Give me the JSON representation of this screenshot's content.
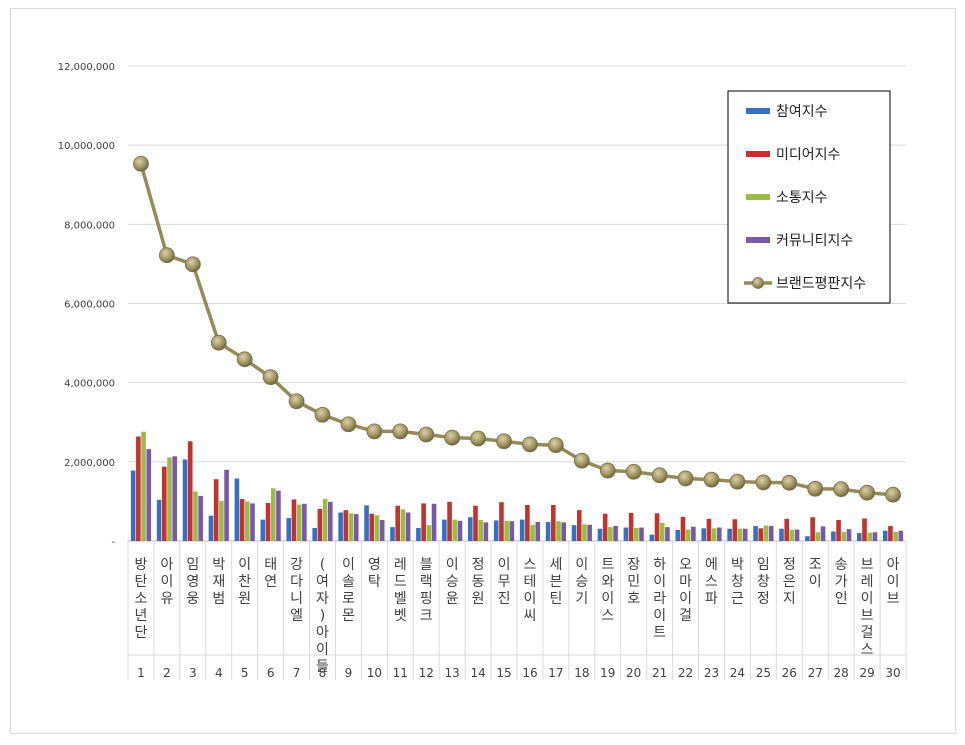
{
  "chart_data": {
    "type": "bar",
    "title": "",
    "xlabel": "",
    "ylabel": "",
    "ylim": [
      0,
      12000000
    ],
    "yticks": [
      "-",
      "2,000,000",
      "4,000,000",
      "6,000,000",
      "8,000,000",
      "10,000,000",
      "12,000,000"
    ],
    "grid": true,
    "legend_position": "top-right",
    "ranks": [
      "1",
      "2",
      "3",
      "4",
      "5",
      "6",
      "7",
      "8",
      "9",
      "10",
      "11",
      "12",
      "13",
      "14",
      "15",
      "16",
      "17",
      "18",
      "19",
      "20",
      "21",
      "22",
      "23",
      "24",
      "25",
      "26",
      "27",
      "28",
      "29",
      "30"
    ],
    "categories": [
      "방탄소년단",
      "아이유",
      "임영웅",
      "박재범",
      "이찬원",
      "태연",
      "강다니엘",
      "(여자)아이들",
      "이솔로몬",
      "영탁",
      "레드벨벳",
      "블랙핑크",
      "이승윤",
      "정동원",
      "이무진",
      "스테이씨",
      "세븐틴",
      "이승기",
      "트와이스",
      "장민호",
      "하이라이트",
      "오마이걸",
      "에스파",
      "박창근",
      "임창정",
      "정은지",
      "조이",
      "송가인",
      "브레이브걸스",
      "아이브"
    ],
    "series": [
      {
        "name": "참여지수",
        "type": "bar",
        "color": "#3a6fc0",
        "values": [
          1780000,
          1040000,
          2060000,
          640000,
          1580000,
          540000,
          580000,
          330000,
          720000,
          900000,
          350000,
          330000,
          540000,
          600000,
          520000,
          540000,
          480000,
          400000,
          310000,
          340000,
          160000,
          280000,
          320000,
          310000,
          380000,
          310000,
          120000,
          240000,
          200000,
          260000
        ]
      },
      {
        "name": "미디어지수",
        "type": "bar",
        "color": "#c0332e",
        "values": [
          2640000,
          1880000,
          2520000,
          1560000,
          1060000,
          960000,
          1050000,
          810000,
          780000,
          690000,
          890000,
          950000,
          990000,
          890000,
          980000,
          910000,
          910000,
          780000,
          690000,
          710000,
          700000,
          610000,
          560000,
          550000,
          320000,
          560000,
          600000,
          530000,
          570000,
          380000
        ]
      },
      {
        "name": "소통지수",
        "type": "bar",
        "color": "#9bbb44",
        "values": [
          2760000,
          2110000,
          1250000,
          1010000,
          1000000,
          1330000,
          920000,
          1060000,
          700000,
          650000,
          800000,
          400000,
          540000,
          530000,
          510000,
          410000,
          500000,
          420000,
          350000,
          330000,
          460000,
          290000,
          320000,
          310000,
          390000,
          280000,
          220000,
          230000,
          210000,
          230000
        ]
      },
      {
        "name": "커뮤니티지수",
        "type": "bar",
        "color": "#7a58a8",
        "values": [
          2320000,
          2140000,
          1140000,
          1800000,
          950000,
          1270000,
          940000,
          990000,
          680000,
          530000,
          720000,
          940000,
          510000,
          470000,
          500000,
          480000,
          470000,
          410000,
          380000,
          340000,
          350000,
          360000,
          340000,
          310000,
          380000,
          290000,
          370000,
          300000,
          220000,
          260000
        ]
      },
      {
        "name": "브랜드평판지수",
        "type": "line",
        "color": "#958a5a",
        "values": [
          9530000,
          7220000,
          6990000,
          5010000,
          4590000,
          4140000,
          3530000,
          3190000,
          2950000,
          2770000,
          2770000,
          2690000,
          2610000,
          2590000,
          2520000,
          2440000,
          2420000,
          2030000,
          1780000,
          1750000,
          1660000,
          1580000,
          1550000,
          1500000,
          1480000,
          1470000,
          1320000,
          1310000,
          1220000,
          1170000
        ]
      }
    ]
  }
}
